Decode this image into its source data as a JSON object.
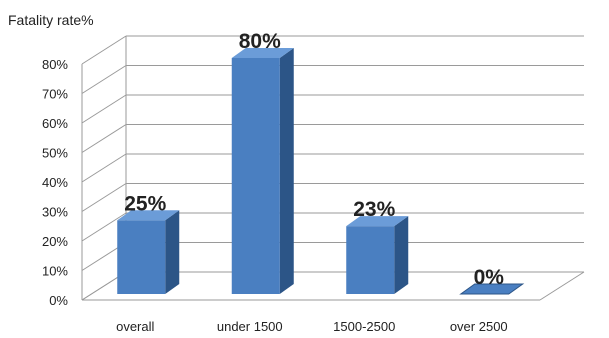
{
  "chart_data": {
    "type": "bar",
    "ylabel": "Fatality rate%",
    "categories": [
      "overall",
      "under 1500",
      "1500-2500",
      "over 2500"
    ],
    "values": [
      25,
      80,
      23,
      0
    ],
    "data_labels": [
      "25%",
      "80%",
      "23%",
      "0%"
    ],
    "yticks": [
      "0%",
      "10%",
      "20%",
      "30%",
      "40%",
      "50%",
      "60%",
      "70%",
      "80%"
    ],
    "ylim": [
      0,
      80
    ],
    "grid": true,
    "legend": "none",
    "style": "3d",
    "colors": {
      "bar_front": "#4a7fc1",
      "bar_side": "#2c5587",
      "bar_top": "#6b9cd8",
      "grid": "#9a9a9a"
    }
  }
}
